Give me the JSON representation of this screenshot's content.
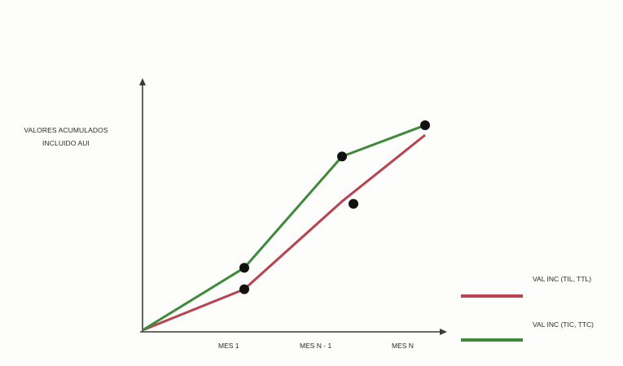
{
  "chart_data": {
    "type": "line",
    "title": "",
    "xlabel": "",
    "ylabel_lines": [
      "VALORES ACUMULADOS",
      "INCLUIDO AUI"
    ],
    "categories": [
      "",
      "MES 1",
      "MES N - 1",
      "MES N"
    ],
    "series": [
      {
        "name": "VAL INC (TIL, TTL)",
        "color": "#b84451",
        "values": [
          0,
          0.21,
          0.66,
          1.0
        ],
        "markers": [
          null,
          0.21,
          0.66,
          null
        ]
      },
      {
        "name": "VAL INC (TIC, TTC)",
        "color": "#3f8a3a",
        "values": [
          0,
          0.32,
          0.89,
          1.05
        ],
        "markers": [
          null,
          0.32,
          0.89,
          1.05
        ]
      }
    ],
    "legend_position": "bottom-right",
    "grid": false
  }
}
